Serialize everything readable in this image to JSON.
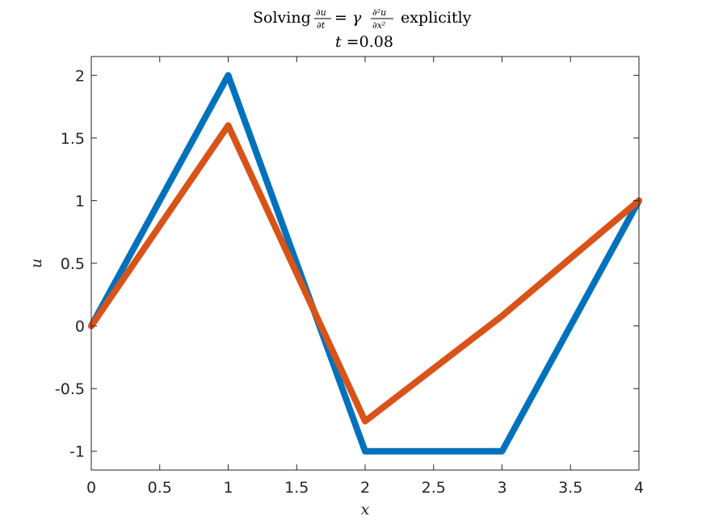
{
  "chart_data": {
    "type": "line",
    "title": {
      "prefix": "Solving",
      "lhs_num": "∂u",
      "lhs_den": "∂t",
      "equals": "= γ",
      "rhs_num": "∂²u",
      "rhs_den": "∂x²",
      "suffix": "explicitly"
    },
    "subtitle": {
      "var": "t",
      "eq": " =0.08"
    },
    "xlabel": "x",
    "ylabel": "u",
    "xlim": [
      0,
      4
    ],
    "ylim": [
      -1.15,
      2.15
    ],
    "xticks": [
      0,
      0.5,
      1,
      1.5,
      2,
      2.5,
      3,
      3.5,
      4
    ],
    "xtick_labels": [
      "0",
      "0.5",
      "1",
      "1.5",
      "2",
      "2.5",
      "3",
      "3.5",
      "4"
    ],
    "yticks": [
      -1,
      -0.5,
      0,
      0.5,
      1,
      1.5,
      2
    ],
    "ytick_labels": [
      "-1",
      "-0.5",
      "0",
      "0.5",
      "1",
      "1.5",
      "2"
    ],
    "grid": false,
    "series": [
      {
        "color": "#0072BD",
        "x": [
          0,
          1,
          2,
          3,
          4
        ],
        "y": [
          0,
          2,
          -1,
          -1,
          1
        ]
      },
      {
        "color": "#D95319",
        "x": [
          0,
          1,
          2,
          3,
          4
        ],
        "y": [
          0,
          1.6,
          -0.76,
          0.08,
          1
        ]
      }
    ]
  }
}
